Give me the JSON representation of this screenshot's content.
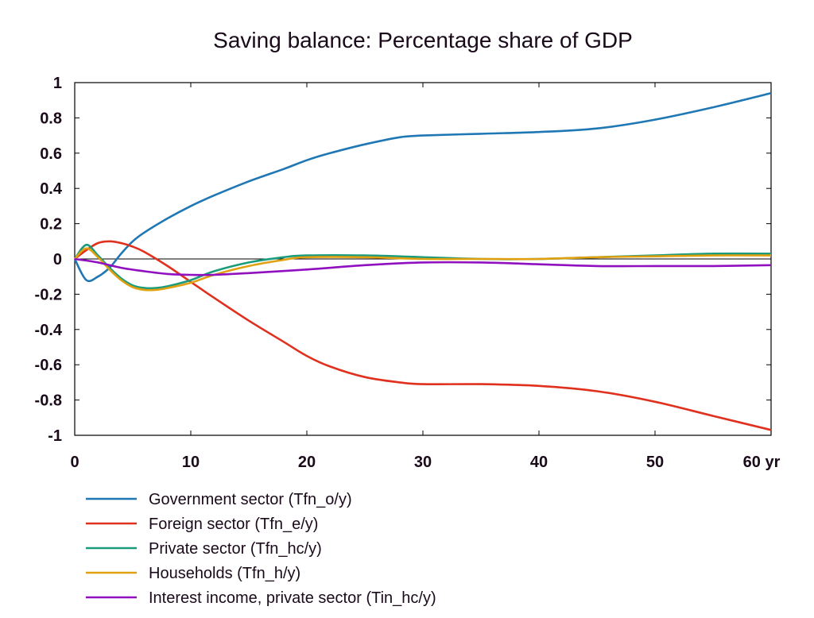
{
  "chart_data": {
    "type": "line",
    "title": "Saving balance: Percentage share of GDP",
    "xlabel": "",
    "ylabel": "",
    "xlim": [
      0,
      60
    ],
    "ylim": [
      -1,
      1
    ],
    "x_ticks": [
      0,
      10,
      20,
      30,
      40,
      50,
      60
    ],
    "x_tick_labels": [
      "0",
      "10",
      "20",
      "30",
      "40",
      "50",
      "60 yr"
    ],
    "y_ticks": [
      1,
      0.8,
      0.6,
      0.4,
      0.2,
      0,
      -0.2,
      -0.4,
      -0.6,
      -0.8,
      -1
    ],
    "y_tick_labels": [
      "1",
      "0.8",
      "0.6",
      "0.4",
      "0.2",
      "0",
      "-0.2",
      "-0.4",
      "-0.6",
      "-0.8",
      "-1"
    ],
    "grid": false,
    "zero_line": true,
    "legend_position": "bottom-left",
    "series": [
      {
        "name": "Government sector (Tfn_o/y)",
        "color": "#1f77b4",
        "x": [
          0,
          1,
          2,
          3,
          4,
          5,
          6,
          8,
          10,
          12,
          15,
          18,
          20,
          22,
          25,
          28,
          30,
          35,
          40,
          45,
          50,
          55,
          60
        ],
        "y": [
          0,
          -0.12,
          -0.1,
          -0.05,
          0.03,
          0.1,
          0.15,
          0.23,
          0.3,
          0.36,
          0.44,
          0.51,
          0.56,
          0.6,
          0.65,
          0.69,
          0.7,
          0.71,
          0.72,
          0.74,
          0.79,
          0.86,
          0.94
        ]
      },
      {
        "name": "Foreign sector (Tfn_e/y)",
        "color": "#e0301e",
        "x": [
          0,
          1,
          2,
          3,
          4,
          5,
          6,
          8,
          10,
          12,
          15,
          18,
          20,
          22,
          25,
          28,
          30,
          35,
          40,
          45,
          50,
          55,
          60
        ],
        "y": [
          0,
          0.05,
          0.09,
          0.1,
          0.09,
          0.07,
          0.04,
          -0.04,
          -0.13,
          -0.22,
          -0.35,
          -0.47,
          -0.55,
          -0.61,
          -0.67,
          -0.7,
          -0.71,
          -0.71,
          -0.72,
          -0.75,
          -0.81,
          -0.89,
          -0.97
        ]
      },
      {
        "name": "Private sector (Tfn_hc/y)",
        "color": "#1a9c7c",
        "x": [
          0,
          1,
          2,
          3,
          4,
          5,
          6,
          7,
          8,
          10,
          12,
          15,
          18,
          20,
          25,
          30,
          35,
          40,
          45,
          50,
          55,
          60
        ],
        "y": [
          0,
          0.08,
          0.02,
          -0.05,
          -0.11,
          -0.15,
          -0.165,
          -0.165,
          -0.155,
          -0.12,
          -0.07,
          -0.02,
          0.01,
          0.02,
          0.02,
          0.01,
          0.0,
          0.0,
          0.01,
          0.02,
          0.03,
          0.03
        ]
      },
      {
        "name": "Households (Tfn_h/y)",
        "color": "#e0a010",
        "x": [
          0,
          1,
          2,
          3,
          4,
          5,
          6,
          7,
          8,
          10,
          12,
          15,
          18,
          20,
          25,
          30,
          35,
          40,
          45,
          50,
          55,
          60
        ],
        "y": [
          0,
          0.06,
          0.01,
          -0.06,
          -0.12,
          -0.16,
          -0.175,
          -0.175,
          -0.165,
          -0.135,
          -0.09,
          -0.04,
          -0.005,
          0.01,
          0.01,
          0.0,
          0.0,
          0.0,
          0.01,
          0.015,
          0.02,
          0.02
        ]
      },
      {
        "name": "Interest income, private sector (Tin_hc/y)",
        "color": "#9010c0",
        "x": [
          0,
          2,
          4,
          6,
          8,
          10,
          12,
          15,
          20,
          25,
          30,
          35,
          40,
          45,
          50,
          55,
          60
        ],
        "y": [
          0,
          -0.02,
          -0.05,
          -0.07,
          -0.085,
          -0.09,
          -0.09,
          -0.08,
          -0.06,
          -0.035,
          -0.02,
          -0.02,
          -0.03,
          -0.04,
          -0.04,
          -0.04,
          -0.035
        ]
      }
    ]
  }
}
